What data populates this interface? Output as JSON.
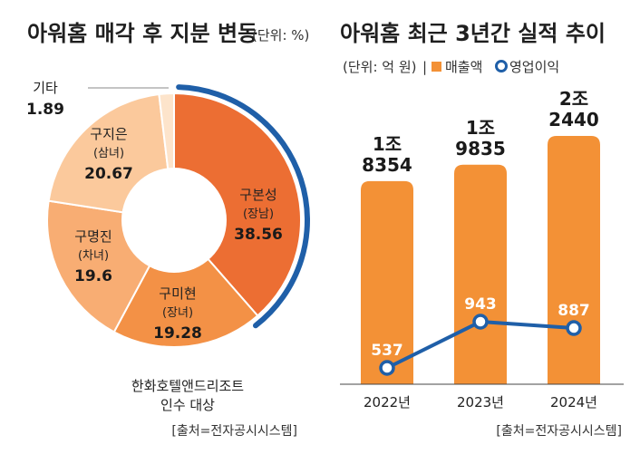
{
  "chart_data": [
    {
      "type": "pie",
      "title": "아워홈 매각 후 지분 변동",
      "unit": "(단위: %)",
      "slices": [
        {
          "name": "구본성",
          "sub": "(장남)",
          "value": 38.56,
          "value_label": "38.56",
          "color": "#ec6e33"
        },
        {
          "name": "구미현",
          "sub": "(장녀)",
          "value": 19.28,
          "value_label": "19.28",
          "color": "#f39146"
        },
        {
          "name": "구명진",
          "sub": "(차녀)",
          "value": 19.6,
          "value_label": "19.6",
          "color": "#f8ad73"
        },
        {
          "name": "구지은",
          "sub": "(삼녀)",
          "value": 20.67,
          "value_label": "20.67",
          "color": "#fbc99c"
        },
        {
          "name": "기타",
          "sub": "",
          "value": 1.89,
          "value_label": "1.89",
          "color": "#fde4cb"
        }
      ],
      "annotation": [
        "한화호텔앤드리조트",
        "인수 대상"
      ],
      "source": "[출처=전자공시시스템]"
    },
    {
      "type": "bar",
      "title": "아워홈 최근 3년간 실적 추이",
      "unit": "(단위: 억 원)",
      "legend": [
        {
          "name": "매출액",
          "color": "#f39136",
          "marker": "square"
        },
        {
          "name": "영업이익",
          "color": "#1f5fa8",
          "marker": "circle"
        }
      ],
      "categories": [
        "2022년",
        "2023년",
        "2024년"
      ],
      "series": [
        {
          "name": "매출액",
          "values": [
            18354,
            19835,
            22440
          ],
          "labels": [
            [
              "1조",
              "8354"
            ],
            [
              "1조",
              "9835"
            ],
            [
              "2조",
              "2440"
            ]
          ]
        },
        {
          "name": "영업이익",
          "values": [
            537,
            943,
            887
          ],
          "labels": [
            "537",
            "943",
            "887"
          ]
        }
      ],
      "source": "[출처=전자공시시스템]"
    }
  ],
  "sep": "|"
}
